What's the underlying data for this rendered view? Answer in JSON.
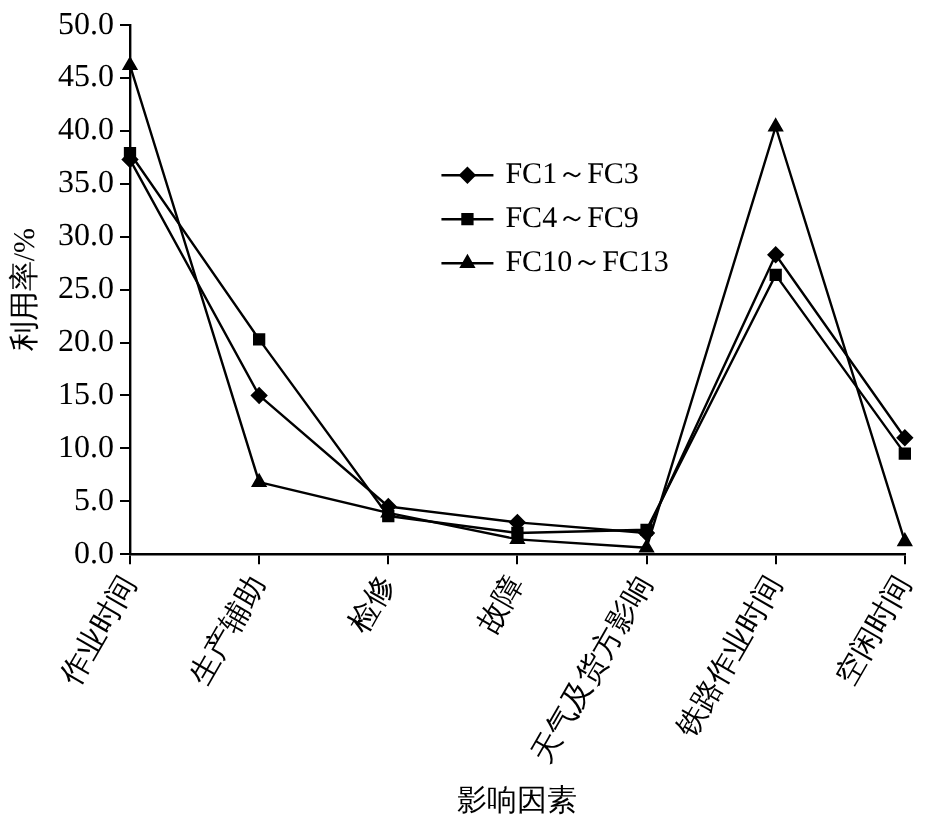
{
  "chart_data": {
    "type": "line",
    "xlabel": "影响因素",
    "ylabel": "利用率/%",
    "categories": [
      "作业时间",
      "生产辅助",
      "检修",
      "故障",
      "天气及货方影响",
      "铁路作业时间",
      "空闲时间"
    ],
    "series": [
      {
        "name": "FC1～FC3",
        "color": "#000000",
        "marker": "diamond",
        "values": [
          37.3,
          15.0,
          4.5,
          3.0,
          2.0,
          28.3,
          11.0
        ]
      },
      {
        "name": "FC4～FC9",
        "color": "#000000",
        "marker": "square",
        "values": [
          37.9,
          20.3,
          3.6,
          2.0,
          2.3,
          26.4,
          9.5
        ]
      },
      {
        "name": "FC10～FC13",
        "color": "#000000",
        "marker": "triangle",
        "values": [
          46.2,
          6.8,
          3.9,
          1.4,
          0.6,
          40.4,
          1.2
        ]
      }
    ],
    "ylim": [
      0,
      50
    ],
    "yticks": [
      {
        "value": 0,
        "label": "0.0"
      },
      {
        "value": 5,
        "label": "5.0"
      },
      {
        "value": 10,
        "label": "10.0"
      },
      {
        "value": 15,
        "label": "15.0"
      },
      {
        "value": 20,
        "label": "20.0"
      },
      {
        "value": 25,
        "label": "25.0"
      },
      {
        "value": 30,
        "label": "30.0"
      },
      {
        "value": 35,
        "label": "35.0"
      },
      {
        "value": 40,
        "label": "40.0"
      },
      {
        "value": 45,
        "label": "45.0"
      },
      {
        "value": 50,
        "label": "50.0"
      }
    ],
    "grid": false,
    "legend": "top right",
    "line_style": "solid"
  }
}
